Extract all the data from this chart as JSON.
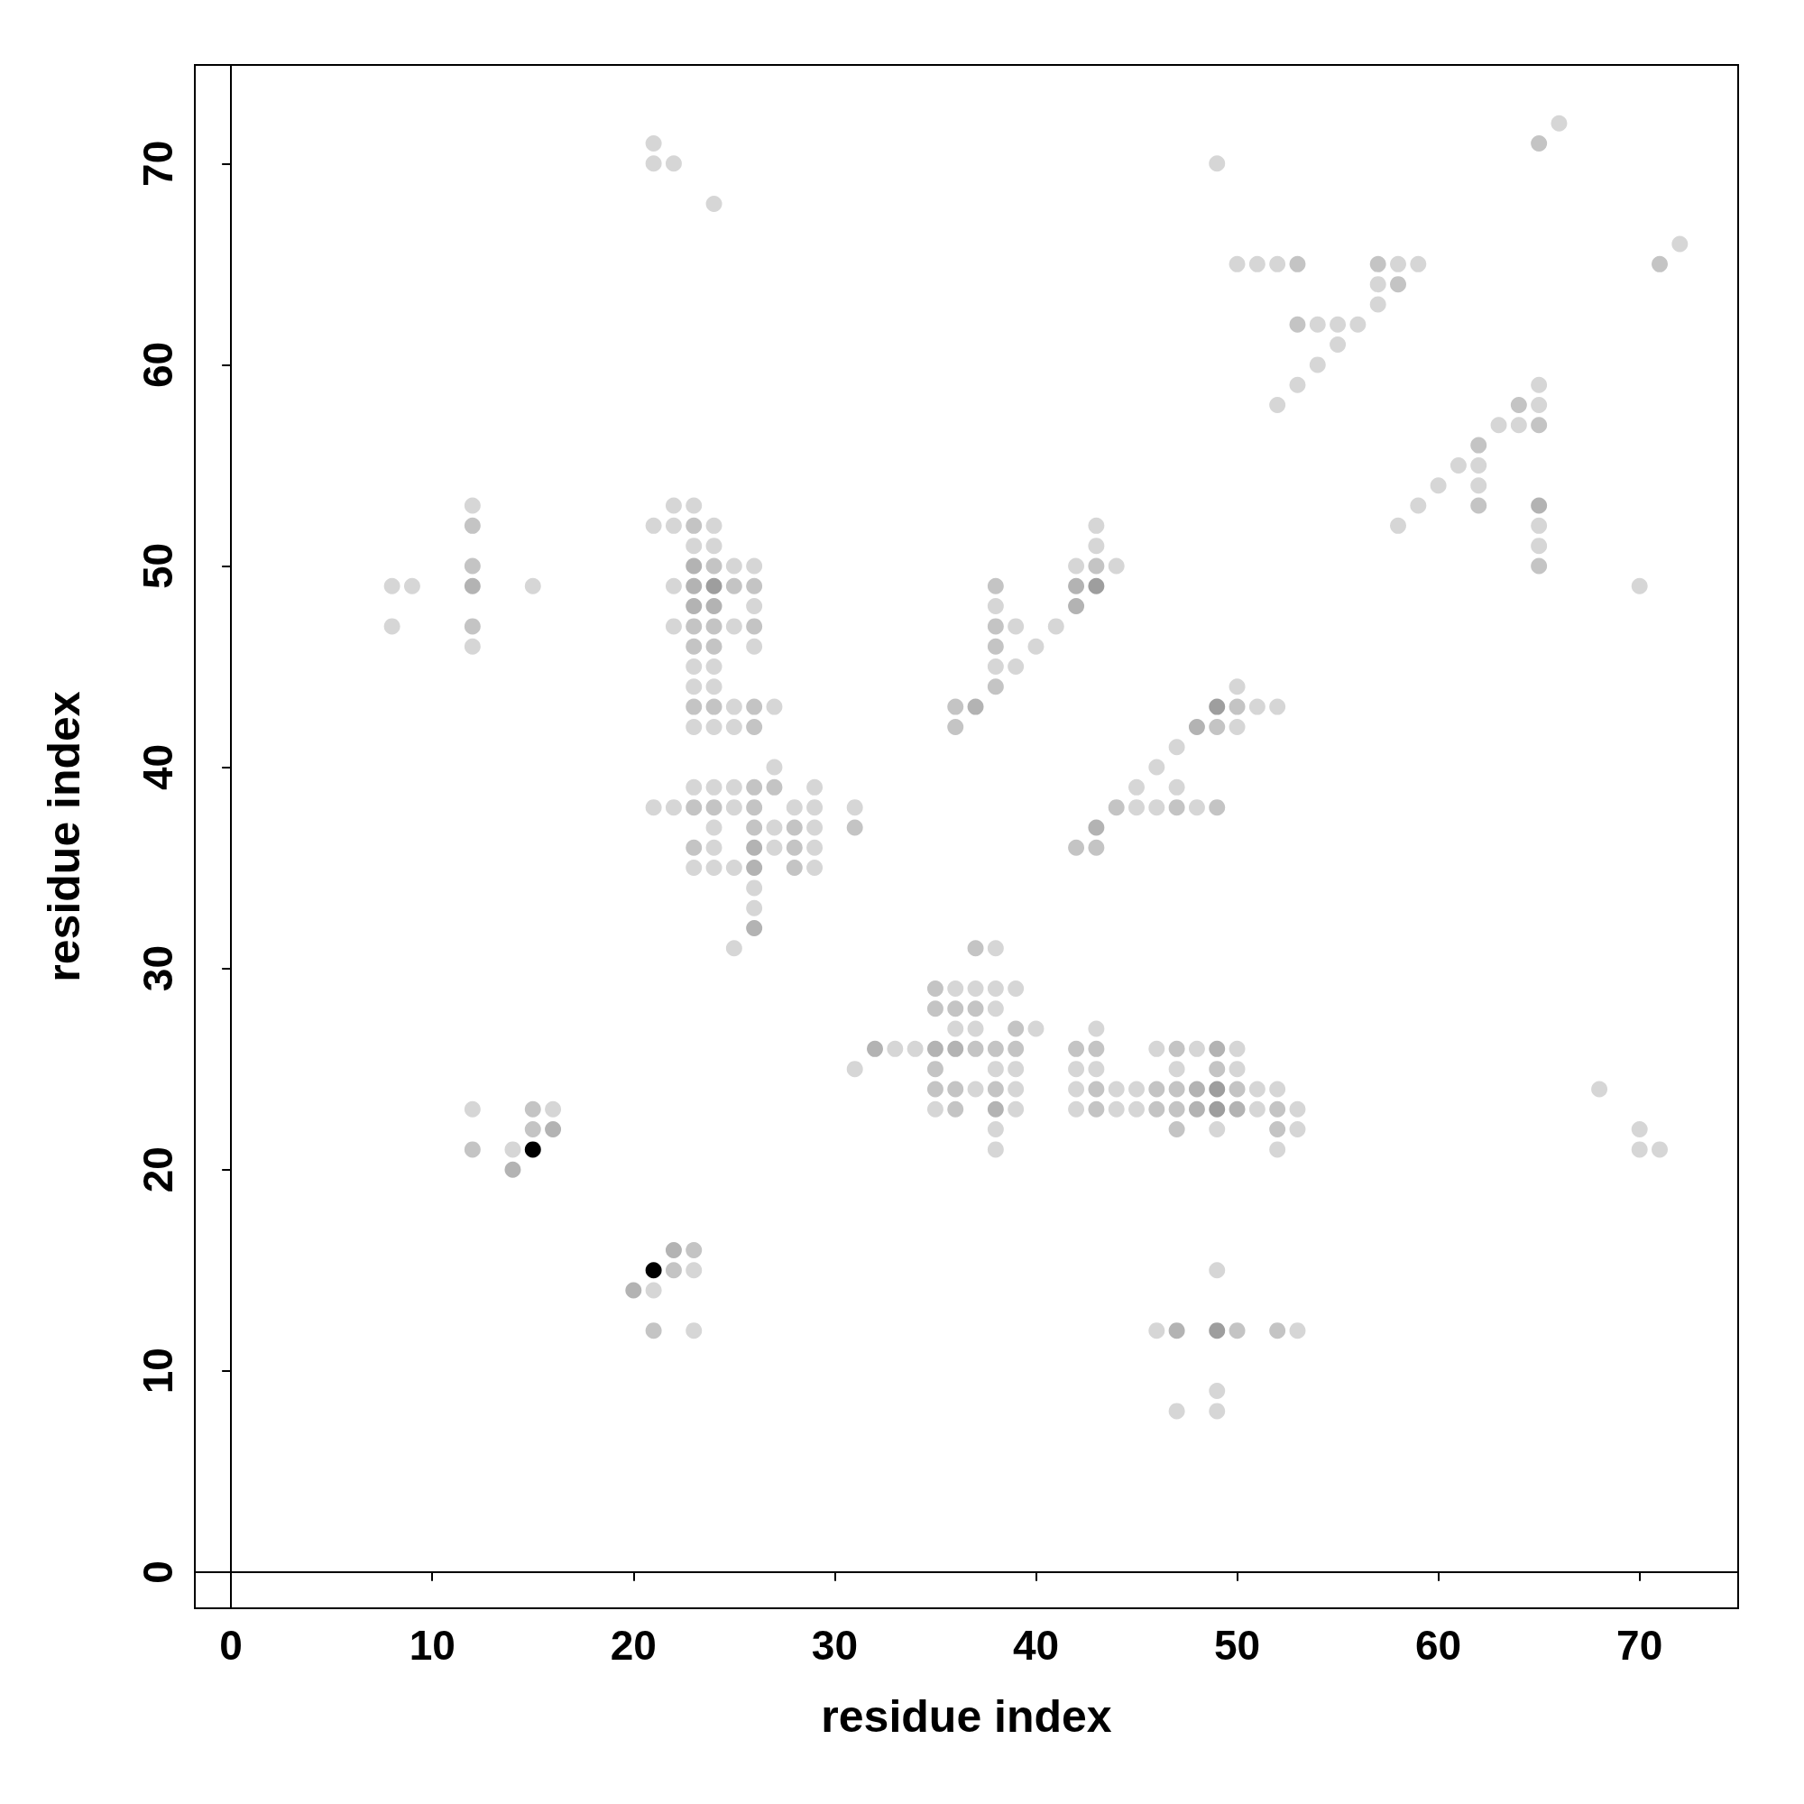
{
  "chart_data": {
    "type": "scatter",
    "xlabel": "residue index",
    "ylabel": "residue index",
    "xlim": [
      -1.8,
      74.9
    ],
    "ylim": [
      -1.8,
      74.9
    ],
    "xticks": [
      0,
      10,
      20,
      30,
      40,
      50,
      60,
      70
    ],
    "yticks": [
      0,
      10,
      20,
      30,
      40,
      50,
      60,
      70
    ],
    "marker": "circle",
    "series": [
      {
        "color": "#d6d6d6",
        "x": [
          21,
          21,
          22,
          24,
          49,
          66,
          50,
          51,
          52,
          58,
          59,
          57,
          57,
          54,
          55,
          56,
          55,
          54,
          53,
          52,
          72,
          65,
          65,
          63,
          64,
          61,
          62,
          60,
          62,
          59,
          58,
          65,
          65,
          70,
          8,
          9,
          8,
          12,
          12,
          15,
          22,
          23,
          21,
          22,
          24,
          23,
          24,
          25,
          26,
          22,
          26,
          22,
          25,
          26,
          23,
          24,
          23,
          24,
          25,
          27,
          23,
          24,
          25,
          27,
          23,
          24,
          25,
          29,
          21,
          22,
          25,
          28,
          29,
          31,
          24,
          27,
          29,
          24,
          27,
          29,
          23,
          24,
          25,
          29,
          26,
          26,
          25,
          38,
          36,
          37,
          38,
          39,
          38,
          36,
          37,
          40,
          43,
          33,
          34,
          46,
          48,
          50,
          31,
          38,
          39,
          42,
          43,
          47,
          50,
          37,
          39,
          42,
          44,
          45,
          51,
          52,
          35,
          39,
          42,
          44,
          45,
          51,
          53,
          38,
          49,
          53,
          38,
          52,
          43,
          43,
          42,
          44,
          38,
          39,
          41,
          40,
          38,
          39,
          50,
          51,
          52,
          50,
          47,
          46,
          45,
          47,
          45,
          46,
          48,
          12,
          16,
          14,
          23,
          21,
          23,
          49,
          46,
          53,
          49,
          47,
          49,
          68,
          70,
          70,
          71
        ],
        "values": [
          71,
          70,
          70,
          68,
          70,
          72,
          65,
          65,
          65,
          65,
          65,
          64,
          63,
          62,
          62,
          62,
          61,
          60,
          59,
          58,
          66,
          59,
          58,
          57,
          57,
          55,
          55,
          54,
          54,
          53,
          52,
          52,
          51,
          49,
          49,
          49,
          47,
          53,
          46,
          49,
          53,
          53,
          52,
          52,
          52,
          51,
          51,
          50,
          50,
          49,
          48,
          47,
          47,
          46,
          45,
          45,
          44,
          44,
          43,
          43,
          42,
          42,
          42,
          40,
          39,
          39,
          39,
          39,
          38,
          38,
          38,
          38,
          38,
          38,
          37,
          37,
          37,
          36,
          36,
          36,
          35,
          35,
          35,
          35,
          34,
          33,
          31,
          31,
          29,
          29,
          29,
          29,
          28,
          27,
          27,
          27,
          27,
          26,
          26,
          26,
          26,
          26,
          25,
          25,
          25,
          25,
          25,
          25,
          25,
          24,
          24,
          24,
          24,
          24,
          24,
          24,
          23,
          23,
          23,
          23,
          23,
          23,
          23,
          22,
          22,
          22,
          21,
          21,
          52,
          51,
          50,
          50,
          48,
          47,
          47,
          46,
          45,
          45,
          44,
          43,
          43,
          42,
          41,
          40,
          39,
          39,
          38,
          38,
          38,
          23,
          23,
          21,
          15,
          14,
          12,
          15,
          12,
          12,
          9,
          8,
          8,
          24,
          22,
          21,
          21
        ]
      },
      {
        "color": "#c4c4c4",
        "x": [
          65,
          53,
          57,
          58,
          53,
          71,
          64,
          65,
          62,
          62,
          65,
          12,
          12,
          12,
          23,
          24,
          25,
          26,
          23,
          24,
          26,
          23,
          24,
          23,
          24,
          26,
          26,
          26,
          27,
          23,
          24,
          26,
          26,
          28,
          23,
          28,
          28,
          31,
          37,
          35,
          35,
          36,
          37,
          39,
          37,
          38,
          39,
          42,
          43,
          47,
          35,
          49,
          35,
          36,
          38,
          43,
          46,
          47,
          50,
          36,
          43,
          46,
          47,
          52,
          47,
          52,
          43,
          38,
          38,
          38,
          38,
          36,
          50,
          36,
          49,
          44,
          47,
          49,
          42,
          43,
          15,
          15,
          12,
          23,
          22,
          21,
          50,
          52
        ],
        "values": [
          71,
          65,
          65,
          64,
          62,
          65,
          58,
          57,
          56,
          53,
          50,
          52,
          50,
          47,
          52,
          50,
          49,
          49,
          47,
          47,
          47,
          46,
          46,
          43,
          43,
          43,
          42,
          39,
          39,
          38,
          38,
          38,
          37,
          37,
          36,
          36,
          35,
          37,
          31,
          29,
          28,
          28,
          28,
          27,
          26,
          26,
          26,
          26,
          26,
          26,
          25,
          25,
          24,
          24,
          24,
          24,
          24,
          24,
          24,
          23,
          23,
          23,
          23,
          23,
          22,
          22,
          50,
          49,
          47,
          46,
          44,
          43,
          43,
          42,
          42,
          38,
          38,
          38,
          36,
          36,
          23,
          22,
          21,
          16,
          15,
          12,
          12,
          12
        ]
      },
      {
        "color": "#b3b3b3",
        "x": [
          65,
          12,
          23,
          23,
          23,
          24,
          26,
          26,
          26,
          32,
          35,
          36,
          49,
          38,
          48,
          48,
          50,
          42,
          42,
          37,
          48,
          43,
          16,
          14,
          22,
          20,
          47
        ],
        "values": [
          53,
          49,
          50,
          49,
          48,
          48,
          36,
          35,
          32,
          26,
          26,
          26,
          26,
          23,
          24,
          23,
          23,
          49,
          48,
          43,
          42,
          37,
          22,
          20,
          16,
          14,
          12
        ]
      },
      {
        "color": "#9e9e9e",
        "x": [
          24,
          43,
          49,
          49,
          49,
          49
        ],
        "values": [
          49,
          49,
          43,
          24,
          23,
          12
        ]
      },
      {
        "color": "#000000",
        "x": [
          15,
          21
        ],
        "values": [
          21,
          15
        ]
      }
    ]
  }
}
